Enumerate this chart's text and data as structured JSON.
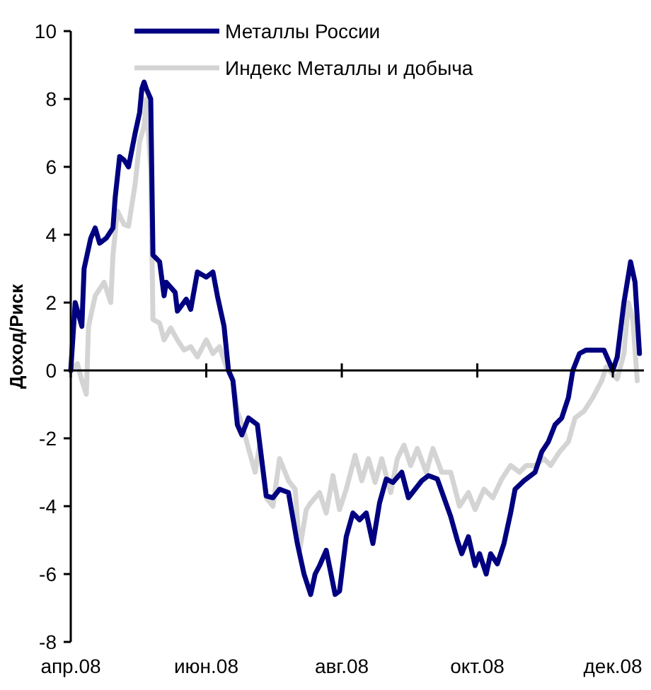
{
  "chart_data": {
    "type": "line",
    "ylabel": "Доход/Риск",
    "xlim": [
      "2008-04-01",
      "2008-12-15"
    ],
    "xticks": [
      {
        "value": "2008-04-01",
        "label": "апр.08"
      },
      {
        "value": "2008-06-01",
        "label": "июн.08"
      },
      {
        "value": "2008-08-01",
        "label": "авг.08"
      },
      {
        "value": "2008-10-01",
        "label": "окт.08"
      },
      {
        "value": "2008-12-01",
        "label": "дек.08"
      }
    ],
    "ylim": [
      -8,
      10
    ],
    "yticks": [
      -8,
      -6,
      -4,
      -2,
      0,
      2,
      4,
      6,
      8,
      10
    ],
    "legend": "top",
    "line_style": "solid",
    "marker": "none",
    "series": [
      {
        "name": "Индекс Металлы и добыча",
        "color": "#d4d4d4",
        "x": [
          "2008-04-01",
          "2008-04-04",
          "2008-04-06",
          "2008-04-08",
          "2008-04-09",
          "2008-04-12",
          "2008-04-14",
          "2008-04-16",
          "2008-04-19",
          "2008-04-20",
          "2008-04-22",
          "2008-04-25",
          "2008-04-27",
          "2008-04-30",
          "2008-05-02",
          "2008-05-04",
          "2008-05-05",
          "2008-05-07",
          "2008-05-08",
          "2008-05-11",
          "2008-05-13",
          "2008-05-16",
          "2008-05-19",
          "2008-05-22",
          "2008-05-25",
          "2008-05-28",
          "2008-06-01",
          "2008-06-04",
          "2008-06-07",
          "2008-06-10",
          "2008-06-13",
          "2008-06-15",
          "2008-06-18",
          "2008-06-20",
          "2008-06-23",
          "2008-06-25",
          "2008-06-28",
          "2008-07-01",
          "2008-07-04",
          "2008-07-08",
          "2008-07-11",
          "2008-07-13",
          "2008-07-16",
          "2008-07-18",
          "2008-07-22",
          "2008-07-25",
          "2008-07-28",
          "2008-07-31",
          "2008-08-03",
          "2008-08-07",
          "2008-08-10",
          "2008-08-13",
          "2008-08-16",
          "2008-08-19",
          "2008-08-23",
          "2008-08-26",
          "2008-08-29",
          "2008-09-01",
          "2008-09-04",
          "2008-09-08",
          "2008-09-11",
          "2008-09-15",
          "2008-09-19",
          "2008-09-23",
          "2008-09-27",
          "2008-09-30",
          "2008-10-04",
          "2008-10-08",
          "2008-10-12",
          "2008-10-16",
          "2008-10-20",
          "2008-10-23",
          "2008-10-27",
          "2008-10-31",
          "2008-11-03",
          "2008-11-07",
          "2008-11-11",
          "2008-11-14",
          "2008-11-18",
          "2008-11-22",
          "2008-11-26",
          "2008-11-28",
          "2008-12-03",
          "2008-12-06",
          "2008-12-08",
          "2008-12-10",
          "2008-12-12"
        ],
        "values": [
          0,
          0.2,
          -0.3,
          -0.7,
          1.3,
          2.2,
          2.4,
          2.6,
          2.0,
          3.4,
          4.7,
          4.3,
          4.25,
          5.5,
          6.75,
          7.2,
          8.0,
          5.9,
          1.5,
          1.4,
          0.9,
          1.25,
          0.9,
          0.6,
          0.7,
          0.4,
          0.9,
          0.5,
          0.7,
          0.1,
          -0.3,
          -1.2,
          -1.8,
          -2.3,
          -3.0,
          -2.2,
          -3.75,
          -4.0,
          -2.6,
          -3.25,
          -3.5,
          -5.3,
          -4.1,
          -3.9,
          -3.6,
          -4.2,
          -3.1,
          -4.1,
          -3.5,
          -2.5,
          -3.25,
          -2.6,
          -3.3,
          -2.6,
          -3.6,
          -2.6,
          -2.2,
          -2.8,
          -2.3,
          -3.0,
          -2.3,
          -3.0,
          -3.0,
          -4.0,
          -3.6,
          -4.1,
          -3.5,
          -3.75,
          -3.2,
          -2.8,
          -3.0,
          -2.8,
          -2.8,
          -2.6,
          -2.8,
          -2.4,
          -2.1,
          -1.4,
          -1.2,
          -0.8,
          -0.3,
          0.1,
          -0.25,
          0.5,
          2.0,
          1.5,
          -0.3
        ]
      },
      {
        "name": "Металлы России",
        "color": "#000080",
        "x": [
          "2008-04-01",
          "2008-04-03",
          "2008-04-06",
          "2008-04-07",
          "2008-04-10",
          "2008-04-12",
          "2008-04-14",
          "2008-04-17",
          "2008-04-20",
          "2008-04-21",
          "2008-04-23",
          "2008-04-25",
          "2008-04-27",
          "2008-04-30",
          "2008-05-02",
          "2008-05-03",
          "2008-05-04",
          "2008-05-05",
          "2008-05-07",
          "2008-05-08",
          "2008-05-11",
          "2008-05-13",
          "2008-05-14",
          "2008-05-18",
          "2008-05-19",
          "2008-05-23",
          "2008-05-25",
          "2008-05-28",
          "2008-06-01",
          "2008-06-04",
          "2008-06-06",
          "2008-06-09",
          "2008-06-11",
          "2008-06-13",
          "2008-06-15",
          "2008-06-17",
          "2008-06-20",
          "2008-06-24",
          "2008-06-28",
          "2008-07-01",
          "2008-07-04",
          "2008-07-08",
          "2008-07-12",
          "2008-07-15",
          "2008-07-18",
          "2008-07-20",
          "2008-07-22",
          "2008-07-25",
          "2008-07-29",
          "2008-07-31",
          "2008-08-03",
          "2008-08-06",
          "2008-08-09",
          "2008-08-12",
          "2008-08-15",
          "2008-08-18",
          "2008-08-21",
          "2008-08-24",
          "2008-08-28",
          "2008-08-31",
          "2008-09-03",
          "2008-09-06",
          "2008-09-09",
          "2008-09-13",
          "2008-09-16",
          "2008-09-19",
          "2008-09-22",
          "2008-09-24",
          "2008-09-27",
          "2008-09-30",
          "2008-10-02",
          "2008-10-05",
          "2008-10-07",
          "2008-10-10",
          "2008-10-13",
          "2008-10-16",
          "2008-10-18",
          "2008-10-22",
          "2008-10-27",
          "2008-10-30",
          "2008-11-02",
          "2008-11-05",
          "2008-11-08",
          "2008-11-11",
          "2008-11-13",
          "2008-11-16",
          "2008-11-19",
          "2008-11-22",
          "2008-11-27",
          "2008-12-01",
          "2008-12-03",
          "2008-12-06",
          "2008-12-09",
          "2008-12-11",
          "2008-12-13"
        ],
        "values": [
          0,
          2.0,
          1.3,
          3.0,
          3.9,
          4.2,
          3.75,
          3.9,
          4.2,
          5.1,
          6.3,
          6.2,
          6.0,
          7.0,
          7.6,
          8.3,
          8.5,
          8.3,
          8.0,
          3.4,
          3.2,
          2.2,
          2.6,
          2.3,
          1.75,
          2.1,
          1.8,
          2.9,
          2.75,
          2.9,
          2.2,
          1.3,
          0,
          -0.3,
          -1.6,
          -1.9,
          -1.4,
          -1.6,
          -3.7,
          -3.75,
          -3.5,
          -3.6,
          -5.1,
          -6.0,
          -6.6,
          -6.0,
          -5.75,
          -5.3,
          -6.6,
          -6.5,
          -4.9,
          -4.2,
          -4.4,
          -4.2,
          -5.1,
          -3.9,
          -3.2,
          -3.3,
          -3.0,
          -3.75,
          -3.5,
          -3.25,
          -3.1,
          -3.2,
          -3.75,
          -4.3,
          -5.0,
          -5.4,
          -4.9,
          -5.75,
          -5.4,
          -6.0,
          -5.4,
          -5.7,
          -5.1,
          -4.2,
          -3.5,
          -3.25,
          -3.0,
          -2.4,
          -2.1,
          -1.6,
          -1.4,
          -0.8,
          0,
          0.5,
          0.6,
          0.6,
          0.6,
          0,
          0.4,
          2.0,
          3.2,
          2.6,
          0.5
        ]
      }
    ]
  }
}
